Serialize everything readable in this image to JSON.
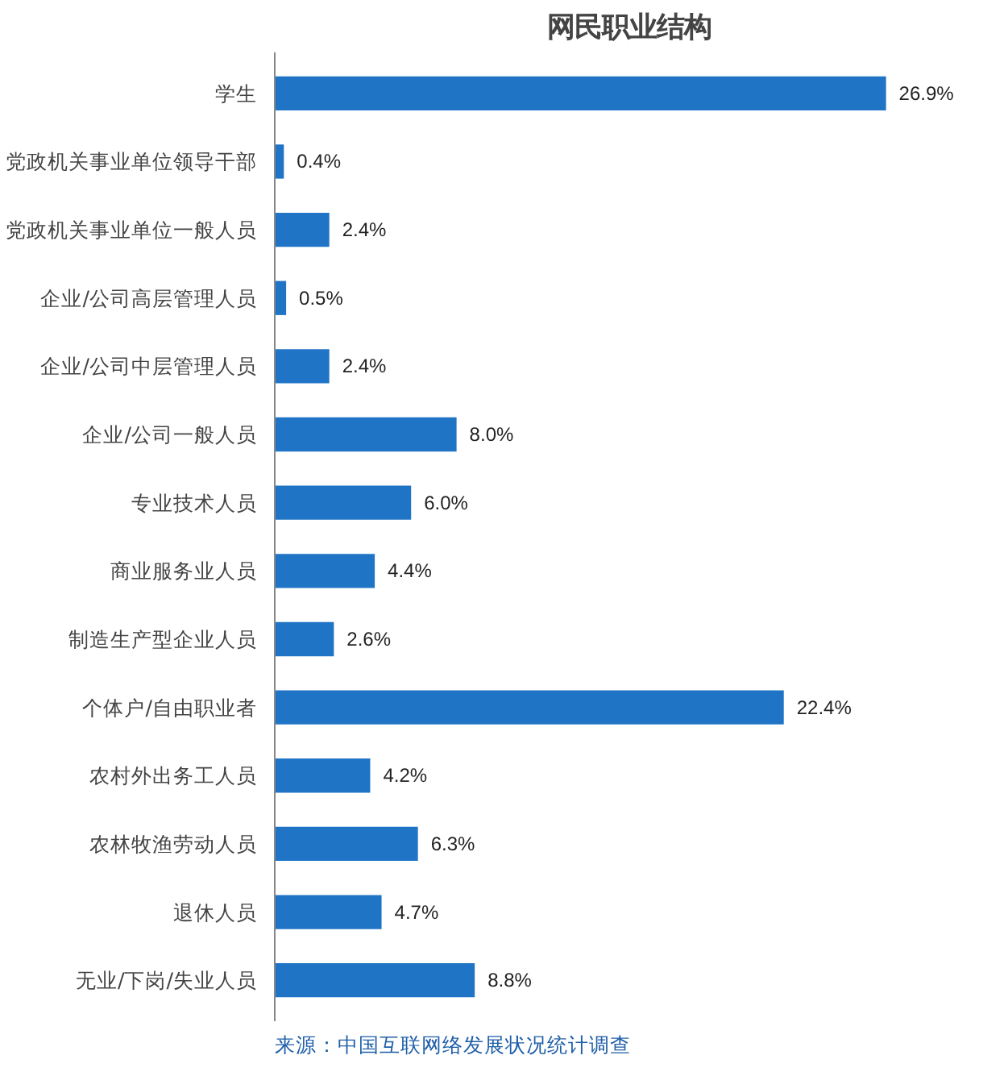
{
  "chart_data": {
    "type": "bar",
    "orientation": "horizontal",
    "title": "网民职业结构",
    "categories": [
      "学生",
      "党政机关事业单位领导干部",
      "党政机关事业单位一般人员",
      "企业/公司高层管理人员",
      "企业/公司中层管理人员",
      "企业/公司一般人员",
      "专业技术人员",
      "商业服务业人员",
      "制造生产型企业人员",
      "个体户/自由职业者",
      "农村外出务工人员",
      "农林牧渔劳动人员",
      "退休人员",
      "无业/下岗/失业人员"
    ],
    "values": [
      26.9,
      0.4,
      2.4,
      0.5,
      2.4,
      8.0,
      6.0,
      4.4,
      2.6,
      22.4,
      4.2,
      6.3,
      4.7,
      8.8
    ],
    "value_labels": [
      "26.9%",
      "0.4%",
      "2.4%",
      "0.5%",
      "2.4%",
      "8.0%",
      "6.0%",
      "4.4%",
      "2.6%",
      "22.4%",
      "4.2%",
      "6.3%",
      "4.7%",
      "8.8%"
    ],
    "color": "#1f74c6",
    "grid": false,
    "tick_labels": "y",
    "annotations": [
      "来源：中国互联网络发展状况统计调查"
    ]
  }
}
